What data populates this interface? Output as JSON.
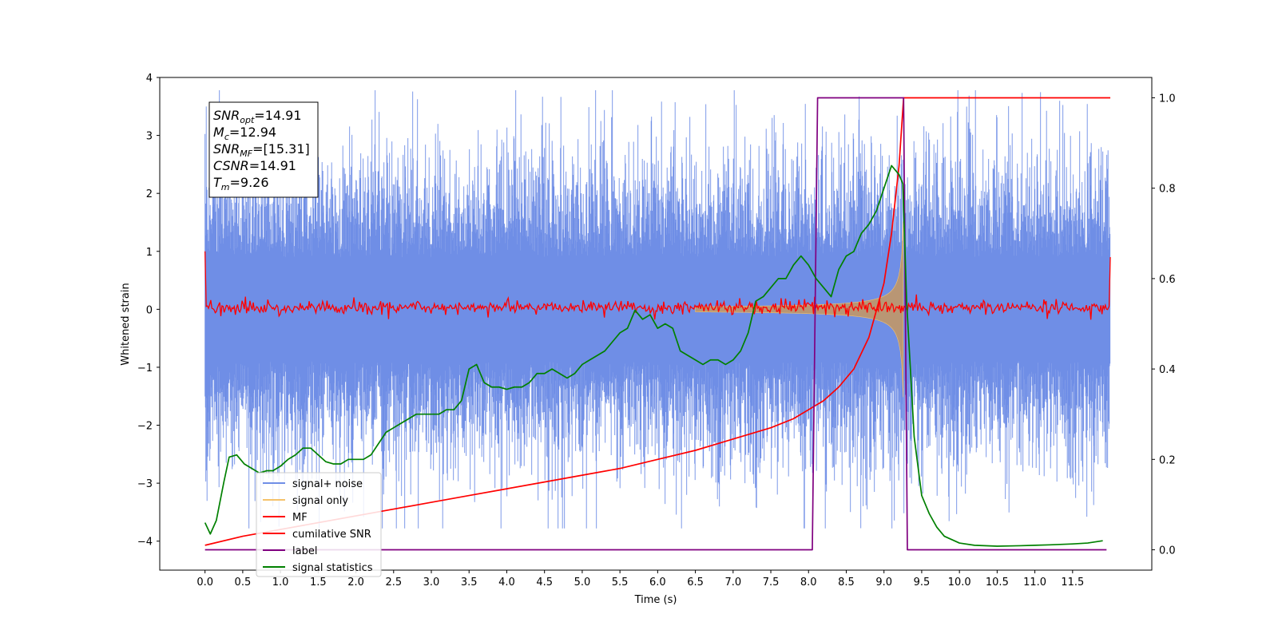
{
  "chart_data": {
    "type": "line",
    "xlabel": "Time (s)",
    "ylabel": "Whitened strain",
    "xlim": [
      -0.6,
      12.55
    ],
    "ylim": [
      -4.5,
      4.0
    ],
    "y2lim": [
      -0.045,
      1.045
    ],
    "grid": false,
    "x_ticks": [
      "0.0",
      "0.5",
      "1.0",
      "1.5",
      "2.0",
      "2.5",
      "3.0",
      "3.5",
      "4.0",
      "4.5",
      "5.0",
      "5.5",
      "6.0",
      "6.5",
      "7.0",
      "7.5",
      "8.0",
      "8.5",
      "9.0",
      "9.5",
      "10.0",
      "10.5",
      "11.0",
      "11.5"
    ],
    "y_ticks": [
      "4",
      "3",
      "2",
      "1",
      "0",
      "−1",
      "−2",
      "−3",
      "−4"
    ],
    "y2_ticks": [
      "1.0",
      "0.8",
      "0.6",
      "0.4",
      "0.2",
      "0.0"
    ],
    "legend_position": "lower-left",
    "legend": [
      "signal+ noise",
      "signal only",
      "MF",
      "cumilative SNR",
      "label",
      "signal statistics"
    ],
    "annotation": {
      "lines": [
        {
          "base": "SNR",
          "sub": "opt",
          "value": "=14.91"
        },
        {
          "base": "M",
          "sub": "c",
          "value": "=12.94"
        },
        {
          "base": "SNR",
          "sub": "MF",
          "value": "=[15.31]"
        },
        {
          "base": "CSNR",
          "sub": "",
          "value": "=14.91"
        },
        {
          "base": "T",
          "sub": "m",
          "value": "=9.26"
        }
      ]
    },
    "series": [
      {
        "name": "signal+ noise",
        "color": "#6f8ee6",
        "axis": "left",
        "kind": "noise",
        "x_range": [
          0,
          12
        ],
        "typical_max": 3.6,
        "typical_min": -3.6
      },
      {
        "name": "signal only",
        "color": "#f5c26b",
        "axis": "left",
        "kind": "chirp",
        "x_range": [
          6.5,
          9.26
        ],
        "peak_amplitude": 1.8
      },
      {
        "name": "MF",
        "color": "#ff0000",
        "axis": "left",
        "kind": "mf",
        "x_range": [
          0,
          12
        ],
        "start_value": 1.0,
        "end_value": 0.9
      },
      {
        "name": "cumilative SNR",
        "color": "#ff0000",
        "axis": "right",
        "x": [
          0.0,
          0.5,
          1.0,
          1.5,
          2.0,
          2.5,
          3.0,
          3.5,
          4.0,
          4.5,
          5.0,
          5.5,
          6.0,
          6.5,
          7.0,
          7.5,
          7.8,
          8.0,
          8.2,
          8.4,
          8.6,
          8.8,
          9.0,
          9.1,
          9.2,
          9.26,
          9.3,
          10.0,
          11.0,
          12.0
        ],
        "values": [
          0.01,
          0.03,
          0.045,
          0.06,
          0.075,
          0.09,
          0.105,
          0.12,
          0.135,
          0.15,
          0.165,
          0.18,
          0.2,
          0.22,
          0.245,
          0.27,
          0.29,
          0.31,
          0.33,
          0.36,
          0.4,
          0.47,
          0.59,
          0.7,
          0.85,
          1.0,
          1.0,
          1.0,
          1.0,
          1.0
        ]
      },
      {
        "name": "label",
        "color": "#800080",
        "axis": "right",
        "x": [
          0.0,
          8.05,
          8.12,
          9.26,
          9.31,
          11.95
        ],
        "values": [
          0.0,
          0.0,
          1.0,
          1.0,
          0.0,
          0.0
        ]
      },
      {
        "name": "signal statistics",
        "color": "#008000",
        "axis": "right",
        "x": [
          0.0,
          0.07,
          0.15,
          0.25,
          0.32,
          0.42,
          0.52,
          0.62,
          0.72,
          0.82,
          0.9,
          1.0,
          1.1,
          1.2,
          1.3,
          1.4,
          1.5,
          1.6,
          1.7,
          1.8,
          1.9,
          2.0,
          2.1,
          2.2,
          2.3,
          2.4,
          2.5,
          2.6,
          2.7,
          2.8,
          2.9,
          3.0,
          3.1,
          3.2,
          3.3,
          3.4,
          3.5,
          3.6,
          3.7,
          3.8,
          3.9,
          4.0,
          4.1,
          4.2,
          4.3,
          4.4,
          4.5,
          4.6,
          4.7,
          4.8,
          4.9,
          5.0,
          5.1,
          5.2,
          5.3,
          5.4,
          5.5,
          5.6,
          5.7,
          5.8,
          5.9,
          6.0,
          6.1,
          6.2,
          6.3,
          6.4,
          6.5,
          6.6,
          6.7,
          6.8,
          6.9,
          7.0,
          7.1,
          7.2,
          7.3,
          7.4,
          7.5,
          7.6,
          7.7,
          7.8,
          7.9,
          8.0,
          8.1,
          8.2,
          8.3,
          8.4,
          8.5,
          8.6,
          8.7,
          8.8,
          8.9,
          9.0,
          9.1,
          9.2,
          9.25,
          9.3,
          9.4,
          9.5,
          9.6,
          9.7,
          9.8,
          10.0,
          10.2,
          10.5,
          10.8,
          11.0,
          11.2,
          11.5,
          11.7,
          11.9
        ],
        "values": [
          0.06,
          0.035,
          0.065,
          0.15,
          0.205,
          0.21,
          0.19,
          0.18,
          0.17,
          0.175,
          0.175,
          0.185,
          0.2,
          0.21,
          0.225,
          0.225,
          0.21,
          0.195,
          0.19,
          0.19,
          0.2,
          0.2,
          0.2,
          0.21,
          0.235,
          0.26,
          0.27,
          0.28,
          0.29,
          0.3,
          0.3,
          0.3,
          0.3,
          0.31,
          0.31,
          0.33,
          0.4,
          0.41,
          0.37,
          0.36,
          0.36,
          0.355,
          0.36,
          0.36,
          0.37,
          0.39,
          0.39,
          0.4,
          0.39,
          0.38,
          0.39,
          0.41,
          0.42,
          0.43,
          0.44,
          0.46,
          0.48,
          0.49,
          0.53,
          0.51,
          0.52,
          0.49,
          0.5,
          0.49,
          0.44,
          0.43,
          0.42,
          0.41,
          0.42,
          0.42,
          0.41,
          0.42,
          0.44,
          0.48,
          0.55,
          0.56,
          0.58,
          0.6,
          0.6,
          0.63,
          0.65,
          0.63,
          0.6,
          0.58,
          0.56,
          0.62,
          0.65,
          0.66,
          0.7,
          0.72,
          0.75,
          0.8,
          0.85,
          0.83,
          0.81,
          0.55,
          0.25,
          0.12,
          0.08,
          0.05,
          0.03,
          0.015,
          0.01,
          0.008,
          0.009,
          0.01,
          0.011,
          0.013,
          0.015,
          0.02
        ]
      }
    ]
  }
}
